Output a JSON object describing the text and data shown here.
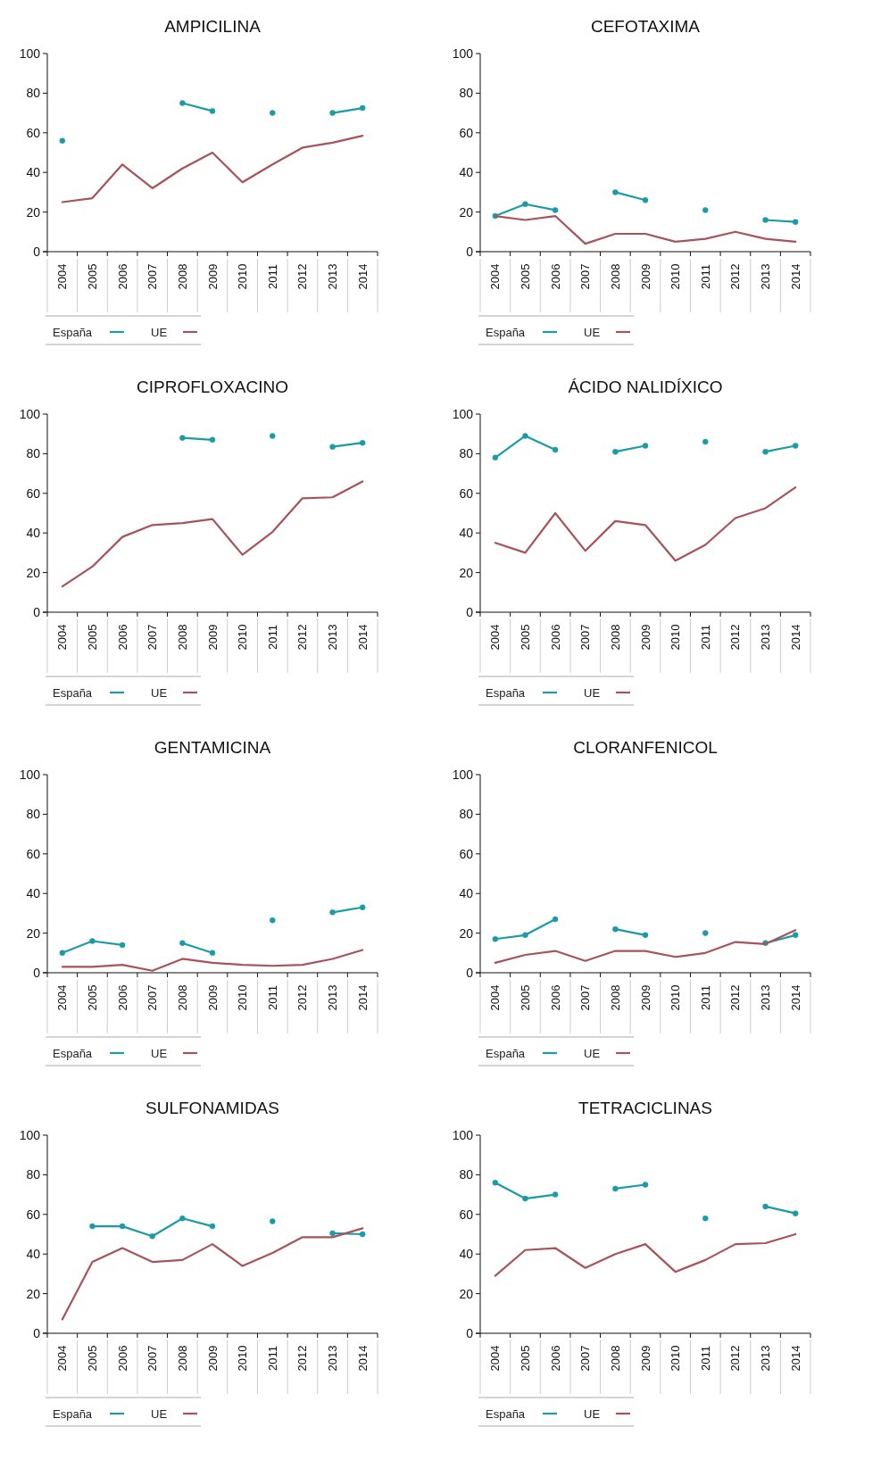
{
  "chart_data": [
    {
      "type": "line",
      "title": "AMPICILINA",
      "categories": [
        "2004",
        "2005",
        "2006",
        "2007",
        "2008",
        "2009",
        "2010",
        "2011",
        "2012",
        "2013",
        "2014"
      ],
      "ylim": [
        0,
        100
      ],
      "yticks": [
        0,
        20,
        40,
        60,
        80,
        100
      ],
      "legend": "bottom left",
      "marker": "none",
      "series": [
        {
          "name": "España",
          "color": "#1a9ba6",
          "marker": "circle",
          "values": [
            56,
            null,
            null,
            null,
            75,
            71,
            null,
            70,
            null,
            70,
            72.5
          ]
        },
        {
          "name": "UE",
          "color": "#a8525a",
          "values": [
            25,
            27,
            44,
            32,
            42,
            50,
            35,
            44,
            52.5,
            55,
            58.5
          ]
        }
      ]
    },
    {
      "type": "line",
      "title": "CEFOTAXIMA",
      "categories": [
        "2004",
        "2005",
        "2006",
        "2007",
        "2008",
        "2009",
        "2010",
        "2011",
        "2012",
        "2013",
        "2014"
      ],
      "ylim": [
        0,
        100
      ],
      "yticks": [
        0,
        20,
        40,
        60,
        80,
        100
      ],
      "legend": "bottom left",
      "marker": "none",
      "series": [
        {
          "name": "España",
          "color": "#1a9ba6",
          "marker": "circle",
          "values": [
            18,
            24,
            21,
            null,
            30,
            26,
            null,
            21,
            null,
            16,
            15
          ]
        },
        {
          "name": "UE",
          "color": "#a8525a",
          "values": [
            18,
            16,
            18,
            4,
            9,
            9,
            5,
            6.5,
            10,
            6.5,
            5
          ]
        }
      ]
    },
    {
      "type": "line",
      "title": "CIPROFLOXACINO",
      "categories": [
        "2004",
        "2005",
        "2006",
        "2007",
        "2008",
        "2009",
        "2010",
        "2011",
        "2012",
        "2013",
        "2014"
      ],
      "ylim": [
        0,
        100
      ],
      "yticks": [
        0,
        20,
        40,
        60,
        80,
        100
      ],
      "legend": "bottom left",
      "marker": "none",
      "series": [
        {
          "name": "España",
          "color": "#1a9ba6",
          "marker": "circle",
          "values": [
            null,
            null,
            null,
            null,
            88,
            87,
            null,
            89,
            null,
            83.5,
            85.5
          ]
        },
        {
          "name": "UE",
          "color": "#a8525a",
          "values": [
            13,
            23,
            38,
            44,
            45,
            47,
            29,
            40.5,
            57.5,
            58,
            66
          ]
        }
      ]
    },
    {
      "type": "line",
      "title": "ÁCIDO NALIDÍXICO",
      "categories": [
        "2004",
        "2005",
        "2006",
        "2007",
        "2008",
        "2009",
        "2010",
        "2011",
        "2012",
        "2013",
        "2014"
      ],
      "ylim": [
        0,
        100
      ],
      "yticks": [
        0,
        20,
        40,
        60,
        80,
        100
      ],
      "legend": "bottom left",
      "marker": "none",
      "series": [
        {
          "name": "España",
          "color": "#1a9ba6",
          "marker": "circle",
          "values": [
            78,
            89,
            82,
            null,
            81,
            84,
            null,
            86,
            null,
            81,
            84
          ]
        },
        {
          "name": "UE",
          "color": "#a8525a",
          "values": [
            35,
            30,
            50,
            31,
            46,
            44,
            26,
            34,
            47.5,
            52.5,
            63
          ]
        }
      ]
    },
    {
      "type": "line",
      "title": "GENTAMICINA",
      "categories": [
        "2004",
        "2005",
        "2006",
        "2007",
        "2008",
        "2009",
        "2010",
        "2011",
        "2012",
        "2013",
        "2014"
      ],
      "ylim": [
        0,
        100
      ],
      "yticks": [
        0,
        20,
        40,
        60,
        80,
        100
      ],
      "legend": "bottom left",
      "marker": "none",
      "series": [
        {
          "name": "España",
          "color": "#1a9ba6",
          "marker": "circle",
          "values": [
            10,
            16,
            14,
            null,
            15,
            10,
            null,
            26.5,
            null,
            30.5,
            33
          ]
        },
        {
          "name": "UE",
          "color": "#a8525a",
          "values": [
            3,
            3,
            4,
            1,
            7,
            5,
            4,
            3.5,
            4,
            7,
            11.5
          ]
        }
      ]
    },
    {
      "type": "line",
      "title": "CLORANFENICOL",
      "categories": [
        "2004",
        "2005",
        "2006",
        "2007",
        "2008",
        "2009",
        "2010",
        "2011",
        "2012",
        "2013",
        "2014"
      ],
      "ylim": [
        0,
        100
      ],
      "yticks": [
        0,
        20,
        40,
        60,
        80,
        100
      ],
      "legend": "bottom left",
      "marker": "none",
      "series": [
        {
          "name": "España",
          "color": "#1a9ba6",
          "marker": "circle",
          "values": [
            17,
            19,
            27,
            null,
            22,
            19,
            null,
            20,
            null,
            15,
            19
          ]
        },
        {
          "name": "UE",
          "color": "#a8525a",
          "values": [
            5,
            9,
            11,
            6,
            11,
            11,
            8,
            10,
            15.5,
            14.5,
            21.5
          ]
        }
      ]
    },
    {
      "type": "line",
      "title": "SULFONAMIDAS",
      "categories": [
        "2004",
        "2005",
        "2006",
        "2007",
        "2008",
        "2009",
        "2010",
        "2011",
        "2012",
        "2013",
        "2014"
      ],
      "ylim": [
        0,
        100
      ],
      "yticks": [
        0,
        20,
        40,
        60,
        80,
        100
      ],
      "legend": "bottom left",
      "marker": "none",
      "series": [
        {
          "name": "España",
          "color": "#1a9ba6",
          "marker": "circle",
          "values": [
            null,
            54,
            54,
            49,
            58,
            54,
            null,
            56.5,
            null,
            50.5,
            50
          ]
        },
        {
          "name": "UE",
          "color": "#a8525a",
          "values": [
            7,
            36,
            43,
            36,
            37,
            45,
            34,
            40.5,
            48.5,
            48.5,
            53
          ]
        }
      ]
    },
    {
      "type": "line",
      "title": "TETRACICLINAS",
      "categories": [
        "2004",
        "2005",
        "2006",
        "2007",
        "2008",
        "2009",
        "2010",
        "2011",
        "2012",
        "2013",
        "2014"
      ],
      "ylim": [
        0,
        100
      ],
      "yticks": [
        0,
        20,
        40,
        60,
        80,
        100
      ],
      "legend": "bottom left",
      "marker": "none",
      "series": [
        {
          "name": "España",
          "color": "#1a9ba6",
          "marker": "circle",
          "values": [
            76,
            68,
            70,
            null,
            73,
            75,
            null,
            58,
            null,
            64,
            60.5
          ]
        },
        {
          "name": "UE",
          "color": "#a8525a",
          "values": [
            29,
            42,
            43,
            33,
            40,
            45,
            31,
            37,
            45,
            45.5,
            50
          ]
        }
      ]
    }
  ]
}
